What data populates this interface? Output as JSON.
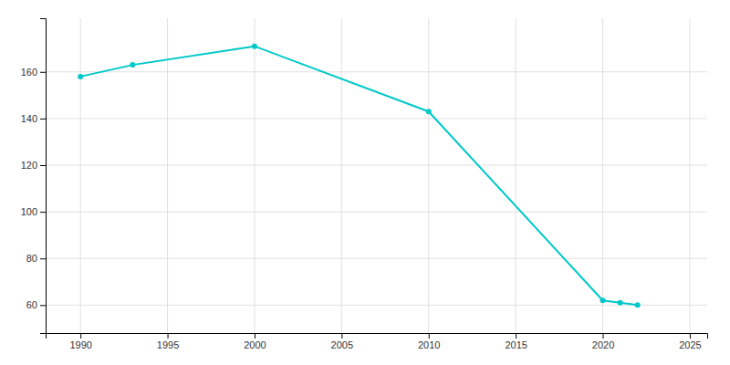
{
  "chart_data": {
    "type": "line",
    "x": [
      1990,
      1993,
      2000,
      2010,
      2020,
      2021,
      2022
    ],
    "values": [
      158,
      163,
      171,
      143,
      62,
      61,
      60
    ],
    "color": "#00c8c8",
    "marker": "circle",
    "xlim": [
      1988,
      2026
    ],
    "ylim": [
      48,
      183
    ],
    "xticks": [
      1990,
      1995,
      2000,
      2005,
      2010,
      2015,
      2020,
      2025
    ],
    "yticks": [
      60,
      80,
      100,
      120,
      140,
      160
    ],
    "grid": true
  }
}
